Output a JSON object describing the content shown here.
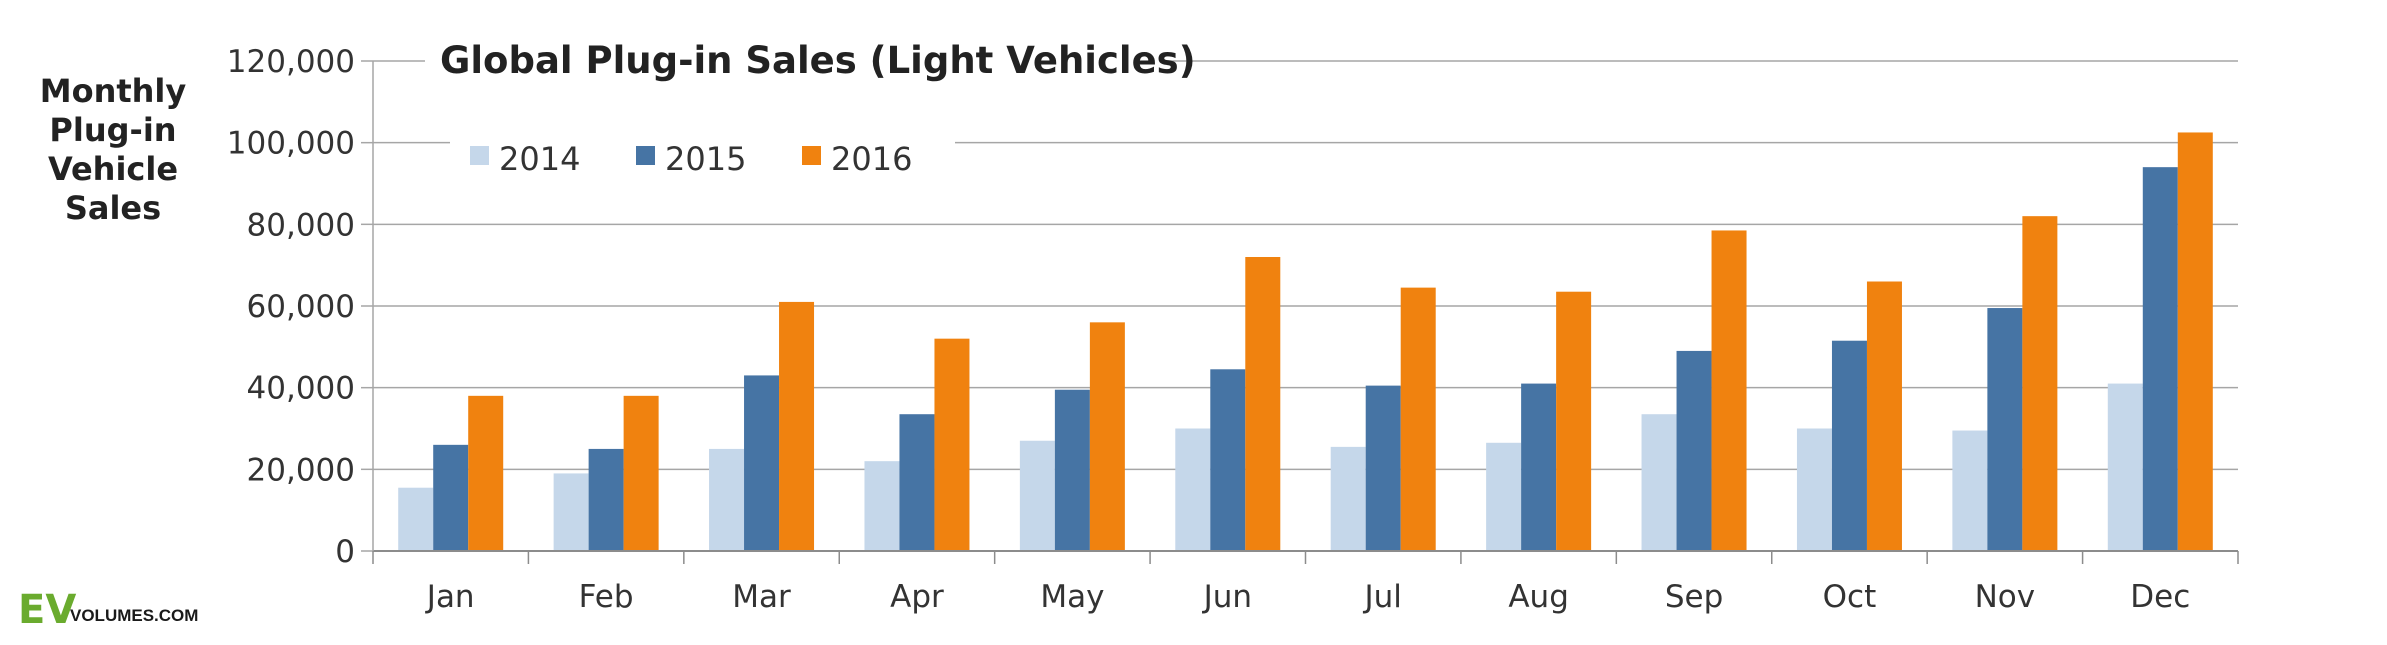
{
  "chart_data": {
    "type": "bar",
    "title": "Global Plug-in Sales (Light Vehicles)",
    "ylabel_lines": [
      "Monthly",
      "Plug-in",
      "Vehicle",
      "Sales"
    ],
    "xlabel": "",
    "categories": [
      "Jan",
      "Feb",
      "Mar",
      "Apr",
      "May",
      "Jun",
      "Jul",
      "Aug",
      "Sep",
      "Oct",
      "Nov",
      "Dec"
    ],
    "series": [
      {
        "name": "2014",
        "color": "#c5d7ea",
        "values": [
          15500,
          19000,
          25000,
          22000,
          27000,
          30000,
          25500,
          26500,
          33500,
          30000,
          29500,
          41000
        ]
      },
      {
        "name": "2015",
        "color": "#4674a4",
        "values": [
          26000,
          25000,
          43000,
          33500,
          39500,
          44500,
          40500,
          41000,
          49000,
          51500,
          59500,
          94000
        ]
      },
      {
        "name": "2016",
        "color": "#f0820f",
        "values": [
          38000,
          38000,
          61000,
          52000,
          56000,
          72000,
          64500,
          63500,
          78500,
          66000,
          82000,
          102500
        ]
      }
    ],
    "ylim": [
      0,
      120000
    ],
    "yticks": [
      0,
      20000,
      40000,
      60000,
      80000,
      100000,
      120000
    ],
    "ytick_labels": [
      "0",
      "20,000",
      "40,000",
      "60,000",
      "80,000",
      "100,000",
      "120,000"
    ],
    "grid": true,
    "legend_position": "top-left"
  },
  "logo": {
    "ev": "EV",
    "rest": "VOLUMES.COM"
  }
}
